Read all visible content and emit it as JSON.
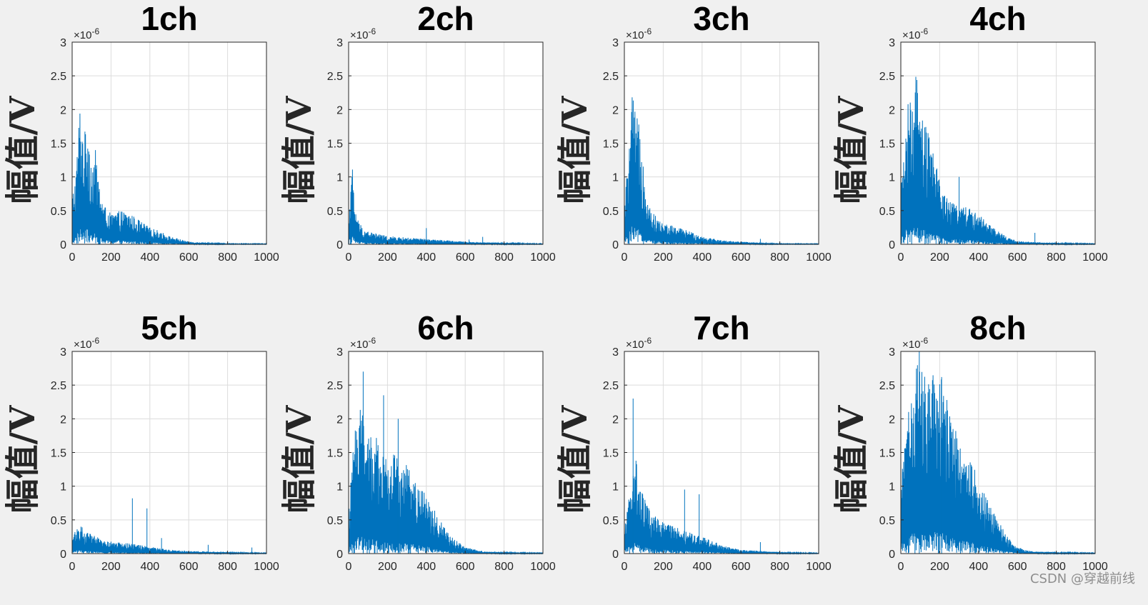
{
  "watermark": "CSDN @穿越前线",
  "chart_data": [
    {
      "type": "line",
      "title": "1ch",
      "ylabel": "幅值/V",
      "xlim": [
        0,
        1000
      ],
      "ylim": [
        0,
        3
      ],
      "y_exponent": "×10^-6",
      "xticks": [
        0,
        200,
        400,
        600,
        800,
        1000
      ],
      "yticks": [
        0,
        0.5,
        1,
        1.5,
        2,
        2.5,
        3
      ],
      "grid": true,
      "color": "#0072bd",
      "envelope": {
        "x": [
          0,
          20,
          40,
          60,
          80,
          100,
          120,
          140,
          160,
          200,
          250,
          300,
          350,
          400,
          450,
          500,
          550,
          600,
          700,
          800,
          1000
        ],
        "y": [
          0.7,
          1.1,
          2.1,
          1.6,
          1.9,
          1.2,
          1.4,
          0.9,
          0.6,
          0.45,
          0.5,
          0.45,
          0.35,
          0.25,
          0.2,
          0.12,
          0.08,
          0.04,
          0.02,
          0.01,
          0.01
        ]
      },
      "spikes": []
    },
    {
      "type": "line",
      "title": "2ch",
      "ylabel": "幅值/V",
      "xlim": [
        0,
        1000
      ],
      "ylim": [
        0,
        3
      ],
      "y_exponent": "×10^-6",
      "xticks": [
        0,
        200,
        400,
        600,
        800,
        1000
      ],
      "yticks": [
        0,
        0.5,
        1,
        1.5,
        2,
        2.5,
        3
      ],
      "grid": true,
      "color": "#0072bd",
      "envelope": {
        "x": [
          0,
          10,
          20,
          30,
          50,
          80,
          120,
          200,
          300,
          400,
          500,
          600,
          700,
          800,
          1000
        ],
        "y": [
          0.4,
          0.9,
          1.15,
          0.6,
          0.35,
          0.22,
          0.18,
          0.12,
          0.1,
          0.08,
          0.06,
          0.04,
          0.03,
          0.02,
          0.01
        ]
      },
      "spikes": [
        {
          "x": 400,
          "y": 0.24
        },
        {
          "x": 620,
          "y": 0.07
        },
        {
          "x": 690,
          "y": 0.11
        }
      ]
    },
    {
      "type": "line",
      "title": "3ch",
      "ylabel": "幅值/V",
      "xlim": [
        0,
        1000
      ],
      "ylim": [
        0,
        3
      ],
      "y_exponent": "×10^-6",
      "xticks": [
        0,
        200,
        400,
        600,
        800,
        1000
      ],
      "yticks": [
        0,
        0.5,
        1,
        1.5,
        2,
        2.5,
        3
      ],
      "grid": true,
      "color": "#0072bd",
      "envelope": {
        "x": [
          0,
          20,
          40,
          60,
          80,
          100,
          120,
          140,
          180,
          220,
          280,
          350,
          400,
          500,
          600,
          700,
          800,
          1000
        ],
        "y": [
          0.6,
          1.3,
          2.25,
          1.9,
          1.8,
          1.2,
          0.7,
          0.5,
          0.35,
          0.3,
          0.25,
          0.18,
          0.12,
          0.06,
          0.04,
          0.02,
          0.01,
          0.01
        ]
      },
      "spikes": [
        {
          "x": 700,
          "y": 0.08
        }
      ]
    },
    {
      "type": "line",
      "title": "4ch",
      "ylabel": "幅值/V",
      "xlim": [
        0,
        1000
      ],
      "ylim": [
        0,
        3
      ],
      "y_exponent": "×10^-6",
      "xticks": [
        0,
        200,
        400,
        600,
        800,
        1000
      ],
      "yticks": [
        0,
        0.5,
        1,
        1.5,
        2,
        2.5,
        3
      ],
      "grid": true,
      "color": "#0072bd",
      "envelope": {
        "x": [
          0,
          20,
          40,
          60,
          80,
          100,
          140,
          180,
          220,
          260,
          300,
          350,
          400,
          450,
          500,
          550,
          600,
          700,
          800,
          1000
        ],
        "y": [
          0.8,
          1.6,
          2.2,
          2.0,
          2.6,
          1.9,
          1.7,
          1.2,
          0.8,
          0.6,
          0.65,
          0.55,
          0.45,
          0.3,
          0.2,
          0.1,
          0.05,
          0.03,
          0.02,
          0.01
        ]
      },
      "spikes": [
        {
          "x": 140,
          "y": 1.65
        },
        {
          "x": 300,
          "y": 1.0
        },
        {
          "x": 690,
          "y": 0.17
        }
      ]
    },
    {
      "type": "line",
      "title": "5ch",
      "ylabel": "幅值/V",
      "xlim": [
        0,
        1000
      ],
      "ylim": [
        0,
        3
      ],
      "y_exponent": "×10^-6",
      "xticks": [
        0,
        200,
        400,
        600,
        800,
        1000
      ],
      "yticks": [
        0,
        0.5,
        1,
        1.5,
        2,
        2.5,
        3
      ],
      "grid": true,
      "color": "#0072bd",
      "envelope": {
        "x": [
          0,
          20,
          40,
          60,
          100,
          150,
          200,
          300,
          400,
          500,
          600,
          700,
          800,
          1000
        ],
        "y": [
          0.25,
          0.4,
          0.45,
          0.35,
          0.28,
          0.22,
          0.18,
          0.15,
          0.1,
          0.06,
          0.04,
          0.03,
          0.02,
          0.01
        ]
      },
      "spikes": [
        {
          "x": 310,
          "y": 0.82
        },
        {
          "x": 385,
          "y": 0.67
        },
        {
          "x": 460,
          "y": 0.23
        },
        {
          "x": 700,
          "y": 0.13
        },
        {
          "x": 925,
          "y": 0.09
        }
      ]
    },
    {
      "type": "line",
      "title": "6ch",
      "ylabel": "幅值/V",
      "xlim": [
        0,
        1000
      ],
      "ylim": [
        0,
        3
      ],
      "y_exponent": "×10^-6",
      "xticks": [
        0,
        200,
        400,
        600,
        800,
        1000
      ],
      "yticks": [
        0,
        0.5,
        1,
        1.5,
        2,
        2.5,
        3
      ],
      "grid": true,
      "color": "#0072bd",
      "envelope": {
        "x": [
          0,
          20,
          40,
          60,
          80,
          100,
          130,
          160,
          200,
          250,
          300,
          350,
          400,
          450,
          500,
          550,
          600,
          650,
          700,
          800,
          1000
        ],
        "y": [
          0.6,
          1.4,
          2.2,
          2.7,
          2.0,
          1.7,
          1.9,
          1.6,
          1.4,
          1.55,
          1.3,
          1.1,
          0.9,
          0.6,
          0.35,
          0.2,
          0.1,
          0.06,
          0.03,
          0.02,
          0.01
        ]
      },
      "spikes": [
        {
          "x": 75,
          "y": 2.7
        },
        {
          "x": 180,
          "y": 2.35
        },
        {
          "x": 255,
          "y": 2.0
        }
      ]
    },
    {
      "type": "line",
      "title": "7ch",
      "ylabel": "幅值/V",
      "xlim": [
        0,
        1000
      ],
      "ylim": [
        0,
        3
      ],
      "y_exponent": "×10^-6",
      "xticks": [
        0,
        200,
        400,
        600,
        800,
        1000
      ],
      "yticks": [
        0,
        0.5,
        1,
        1.5,
        2,
        2.5,
        3
      ],
      "grid": true,
      "color": "#0072bd",
      "envelope": {
        "x": [
          0,
          20,
          40,
          60,
          80,
          100,
          140,
          180,
          220,
          260,
          300,
          350,
          400,
          450,
          500,
          600,
          700,
          800,
          1000
        ],
        "y": [
          0.4,
          0.8,
          1.2,
          1.5,
          1.0,
          0.85,
          0.6,
          0.5,
          0.45,
          0.4,
          0.35,
          0.3,
          0.25,
          0.2,
          0.12,
          0.06,
          0.04,
          0.02,
          0.01
        ]
      },
      "spikes": [
        {
          "x": 45,
          "y": 2.3
        },
        {
          "x": 310,
          "y": 0.95
        },
        {
          "x": 385,
          "y": 0.88
        },
        {
          "x": 700,
          "y": 0.17
        }
      ]
    },
    {
      "type": "line",
      "title": "8ch",
      "ylabel": "幅值/V",
      "xlim": [
        0,
        1000
      ],
      "ylim": [
        0,
        3
      ],
      "y_exponent": "×10^-6",
      "xticks": [
        0,
        200,
        400,
        600,
        800,
        1000
      ],
      "yticks": [
        0,
        0.5,
        1,
        1.5,
        2,
        2.5,
        3
      ],
      "grid": true,
      "color": "#0072bd",
      "envelope": {
        "x": [
          0,
          20,
          40,
          60,
          80,
          100,
          140,
          180,
          220,
          260,
          300,
          350,
          400,
          450,
          500,
          550,
          600,
          650,
          700,
          800,
          1000
        ],
        "y": [
          1.0,
          1.7,
          2.4,
          2.6,
          3.0,
          2.8,
          2.5,
          2.8,
          2.6,
          2.0,
          1.7,
          1.5,
          1.1,
          0.8,
          0.5,
          0.25,
          0.1,
          0.05,
          0.03,
          0.02,
          0.01
        ]
      },
      "spikes": [
        {
          "x": 95,
          "y": 3.0
        },
        {
          "x": 210,
          "y": 2.62
        }
      ]
    }
  ]
}
